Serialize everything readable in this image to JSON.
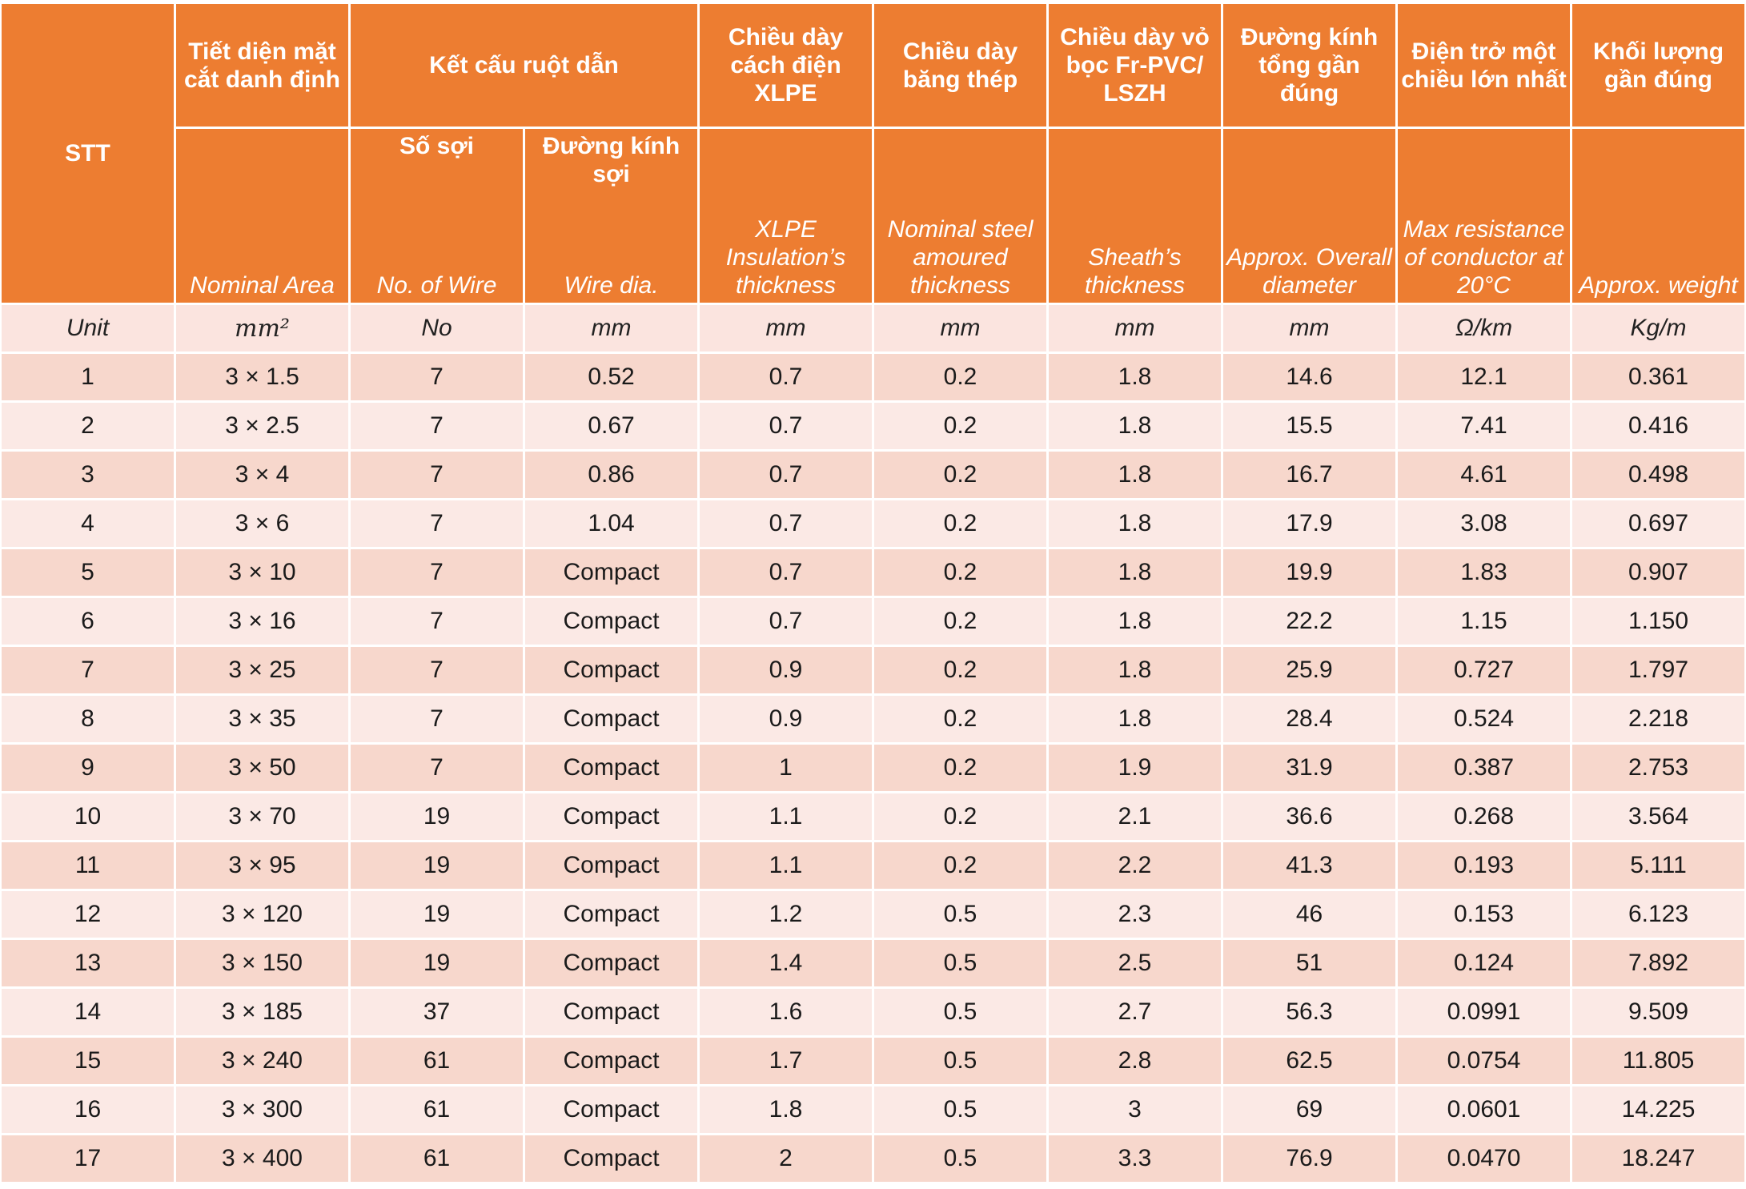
{
  "header": {
    "stt": "STT",
    "area_vn": "Tiết diện mặt cắt danh định",
    "area_en": "Nominal Area",
    "structure_vn": "Kết cấu ruột dẫn",
    "wires_vn": "Số sợi",
    "wires_en": "No. of Wire",
    "wire_dia_vn": "Đường kính sợi",
    "wire_dia_en": "Wire dia.",
    "insulation_vn": "Chiều dày cách điện XLPE",
    "insulation_en": "XLPE Insulation’s thickness",
    "steel_vn": "Chiều dày băng thép",
    "steel_en": "Nominal steel amoured thickness",
    "sheath_vn": "Chiều dày vỏ bọc Fr-PVC/ LSZH",
    "sheath_en": "Sheath’s thickness",
    "diameter_vn": "Đường kính tổng gần đúng",
    "diameter_en": "Approx. Overall diameter",
    "resistance_vn": "Điện trở một chiều lớn nhất",
    "resistance_en": "Max resistance of conductor at 20°C",
    "weight_vn": "Khối lượng gần đúng",
    "weight_en": "Approx. weight"
  },
  "units": [
    "Unit",
    "mm²",
    "No",
    "mm",
    "mm",
    "mm",
    "mm",
    "mm",
    "Ω/km",
    "Kg/m"
  ],
  "rows": [
    [
      "1",
      "3 × 1.5",
      "7",
      "0.52",
      "0.7",
      "0.2",
      "1.8",
      "14.6",
      "12.1",
      "0.361"
    ],
    [
      "2",
      "3 × 2.5",
      "7",
      "0.67",
      "0.7",
      "0.2",
      "1.8",
      "15.5",
      "7.41",
      "0.416"
    ],
    [
      "3",
      "3 × 4",
      "7",
      "0.86",
      "0.7",
      "0.2",
      "1.8",
      "16.7",
      "4.61",
      "0.498"
    ],
    [
      "4",
      "3 × 6",
      "7",
      "1.04",
      "0.7",
      "0.2",
      "1.8",
      "17.9",
      "3.08",
      "0.697"
    ],
    [
      "5",
      "3 × 10",
      "7",
      "Compact",
      "0.7",
      "0.2",
      "1.8",
      "19.9",
      "1.83",
      "0.907"
    ],
    [
      "6",
      "3 × 16",
      "7",
      "Compact",
      "0.7",
      "0.2",
      "1.8",
      "22.2",
      "1.15",
      "1.150"
    ],
    [
      "7",
      "3 × 25",
      "7",
      "Compact",
      "0.9",
      "0.2",
      "1.8",
      "25.9",
      "0.727",
      "1.797"
    ],
    [
      "8",
      "3 × 35",
      "7",
      "Compact",
      "0.9",
      "0.2",
      "1.8",
      "28.4",
      "0.524",
      "2.218"
    ],
    [
      "9",
      "3 × 50",
      "7",
      "Compact",
      "1",
      "0.2",
      "1.9",
      "31.9",
      "0.387",
      "2.753"
    ],
    [
      "10",
      "3 × 70",
      "19",
      "Compact",
      "1.1",
      "0.2",
      "2.1",
      "36.6",
      "0.268",
      "3.564"
    ],
    [
      "11",
      "3 × 95",
      "19",
      "Compact",
      "1.1",
      "0.2",
      "2.2",
      "41.3",
      "0.193",
      "5.111"
    ],
    [
      "12",
      "3 × 120",
      "19",
      "Compact",
      "1.2",
      "0.5",
      "2.3",
      "46",
      "0.153",
      "6.123"
    ],
    [
      "13",
      "3 × 150",
      "19",
      "Compact",
      "1.4",
      "0.5",
      "2.5",
      "51",
      "0.124",
      "7.892"
    ],
    [
      "14",
      "3 × 185",
      "37",
      "Compact",
      "1.6",
      "0.5",
      "2.7",
      "56.3",
      "0.0991",
      "9.509"
    ],
    [
      "15",
      "3 × 240",
      "61",
      "Compact",
      "1.7",
      "0.5",
      "2.8",
      "62.5",
      "0.0754",
      "11.805"
    ],
    [
      "16",
      "3 × 300",
      "61",
      "Compact",
      "1.8",
      "0.5",
      "3",
      "69",
      "0.0601",
      "14.225"
    ],
    [
      "17",
      "3 × 400",
      "61",
      "Compact",
      "2",
      "0.5",
      "3.3",
      "76.9",
      "0.0470",
      "18.247"
    ]
  ],
  "colors": {
    "header_bg": "#ED7D31",
    "header_text": "#FFFFFF",
    "row_odd_bg": "#F7D7CC",
    "row_even_bg": "#FBE9E5",
    "unit_row_bg": "#FBE4DF"
  }
}
